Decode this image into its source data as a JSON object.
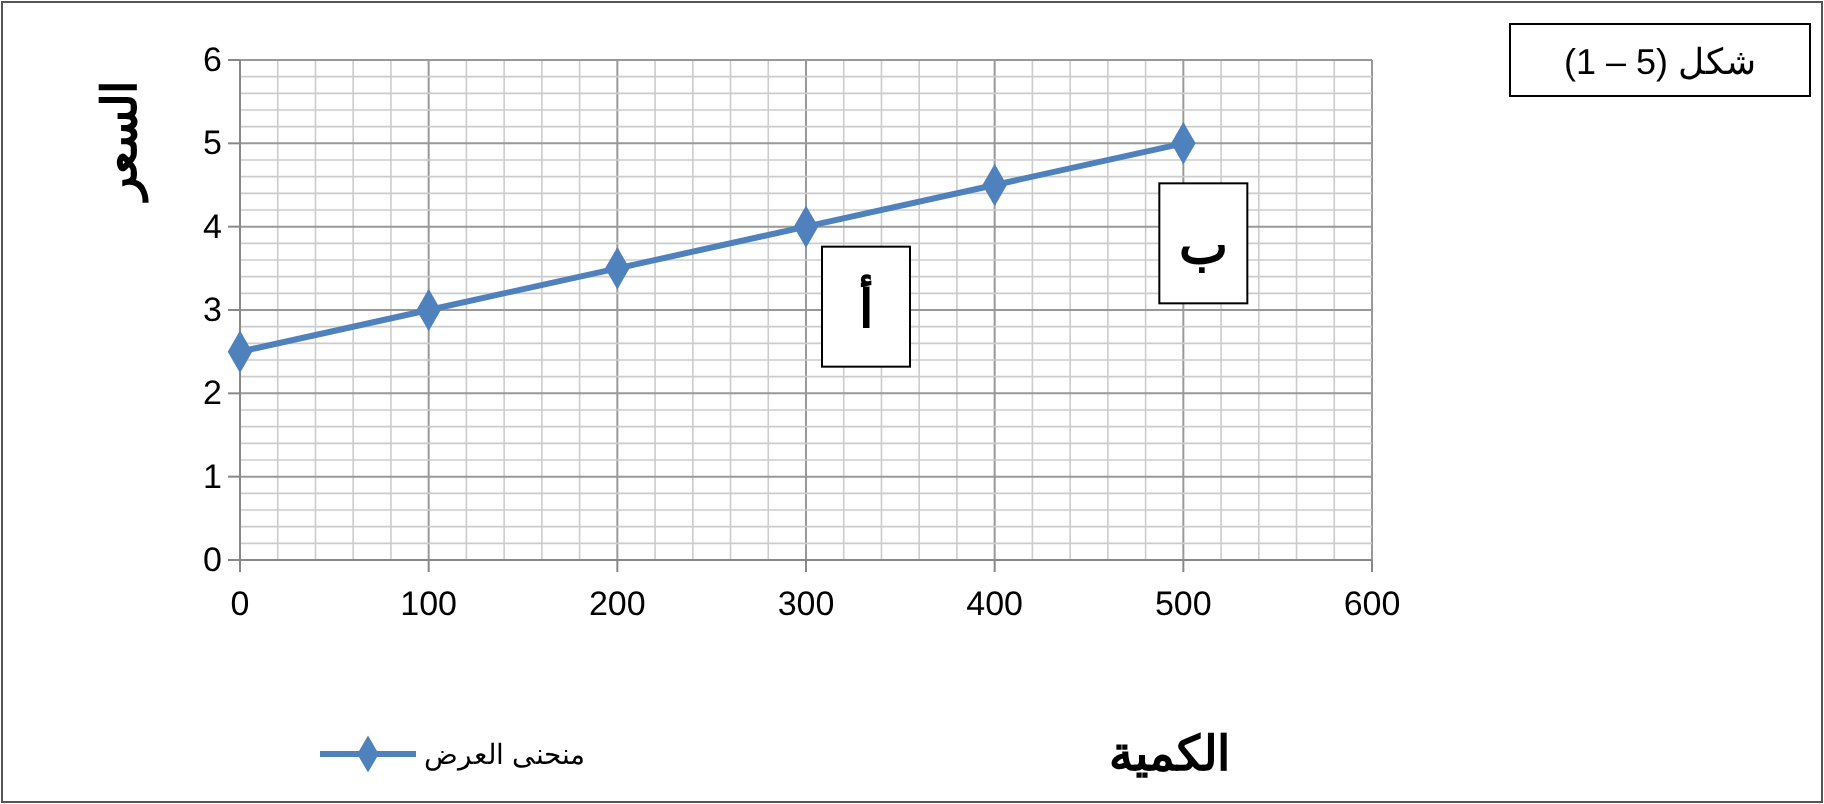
{
  "chart_data": {
    "type": "line",
    "xlabel": "الكمية",
    "ylabel": "السعر",
    "x": [
      0,
      100,
      200,
      300,
      400,
      500
    ],
    "series": [
      {
        "name": "منحنى العرض",
        "color": "#4f81bd",
        "values": [
          2.5,
          3,
          3.5,
          4,
          4.5,
          5
        ]
      }
    ],
    "xlim": [
      0,
      600
    ],
    "xticks": [
      0,
      100,
      200,
      300,
      400,
      500,
      600
    ],
    "ylim": [
      0,
      6
    ],
    "yticks": [
      0,
      1,
      2,
      3,
      4,
      5,
      6
    ],
    "grid": true,
    "legend": "bottom left",
    "marker": "diamond",
    "line_style": "solid",
    "annotations": [
      "شكل (5 – 1)",
      {
        "text": "أ",
        "x": 300,
        "y": 4
      },
      {
        "text": "ب",
        "x": 500,
        "y": 5
      }
    ]
  }
}
